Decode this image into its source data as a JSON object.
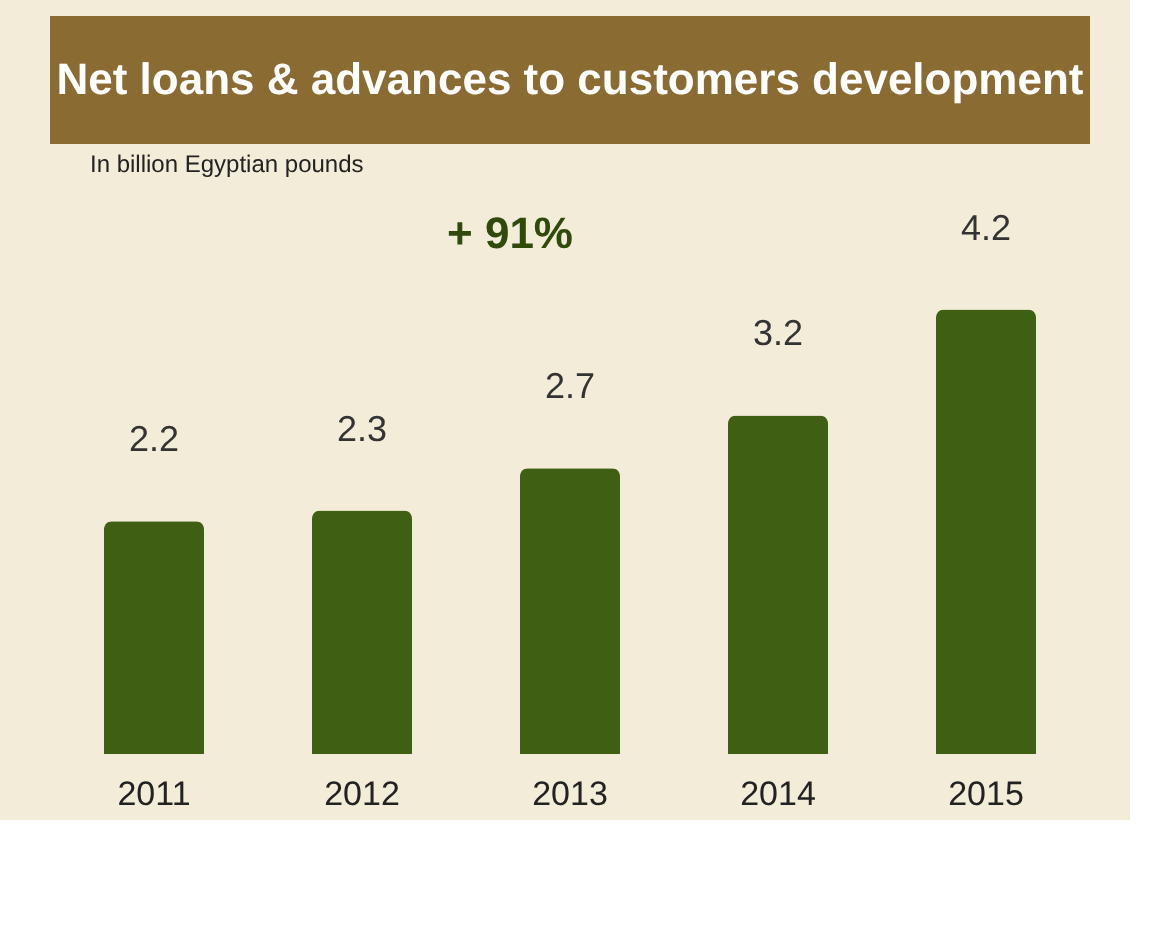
{
  "chart_data": {
    "type": "bar",
    "title": "Net loans & advances to customers development",
    "categories": [
      "2011",
      "2012",
      "2013",
      "2014",
      "2015"
    ],
    "values": [
      2.2,
      2.3,
      2.7,
      3.2,
      4.2
    ],
    "color": "#3f5f12",
    "data_labels": true,
    "annotations": [
      "In billion Egyptian pounds",
      "+ 91%"
    ]
  }
}
